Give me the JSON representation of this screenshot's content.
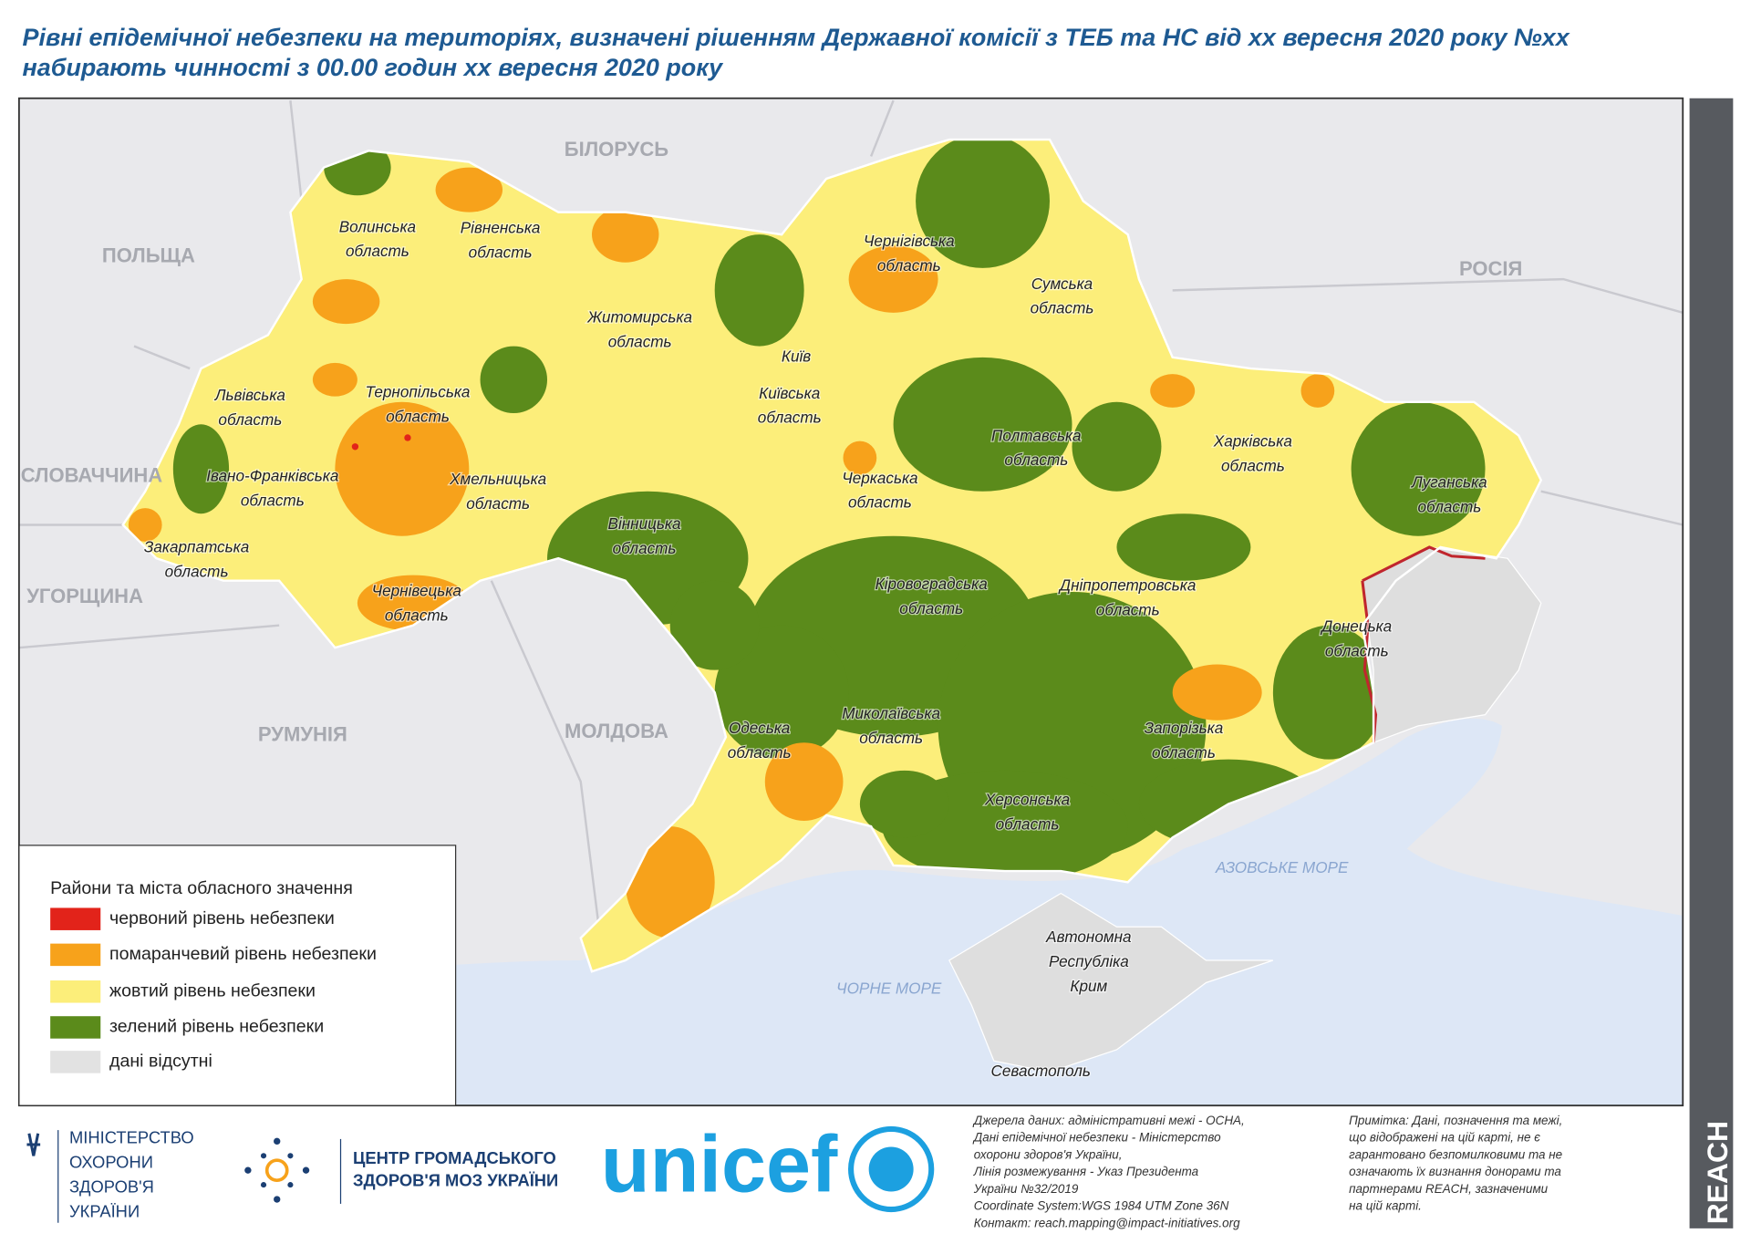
{
  "header": {
    "title_lines": [
      "Рівні епідемічної небезпеки на територіях, визначені рішенням Державної комісії з ТЕБ та НС від хх вересня 2020 року №хх",
      "набирають чинності з 00.00 годин хх вересня 2020 року"
    ]
  },
  "map": {
    "countries": [
      "БІЛОРУСЬ",
      "ПОЛЬЩА",
      "РОСІЯ",
      "СЛОВАЧЧИНА",
      "УГОРЩИНА",
      "РУМУНІЯ",
      "МОЛДОВА"
    ],
    "seas": [
      "АЗОВСЬКЕ МОРЕ",
      "ЧОРНЕ МОРЕ"
    ],
    "regions": [
      [
        "Волинська",
        "область"
      ],
      [
        "Рівненська",
        "область"
      ],
      [
        "Житомирська",
        "область"
      ],
      [
        "Чернігівська",
        "область"
      ],
      [
        "Сумська",
        "область"
      ],
      [
        "Київ"
      ],
      [
        "Київська",
        "область"
      ],
      [
        "Львівська",
        "область"
      ],
      [
        "Тернопільська",
        "область"
      ],
      [
        "Полтавська",
        "область"
      ],
      [
        "Харківська",
        "область"
      ],
      [
        "Луганська",
        "область"
      ],
      [
        "Івано-Франківська",
        "область"
      ],
      [
        "Хмельницька",
        "область"
      ],
      [
        "Черкаська",
        "область"
      ],
      [
        "Вінницька",
        "область"
      ],
      [
        "Закарпатська",
        "область"
      ],
      [
        "Кіровоградська",
        "область"
      ],
      [
        "Дніпропетровська",
        "область"
      ],
      [
        "Чернівецька",
        "область"
      ],
      [
        "Донецька",
        "область"
      ],
      [
        "Одеська",
        "область"
      ],
      [
        "Миколаївська",
        "область"
      ],
      [
        "Запорізька",
        "область"
      ],
      [
        "Херсонська",
        "область"
      ],
      [
        "Автономна",
        "Республіка",
        "Крим"
      ],
      [
        "Севастополь"
      ]
    ]
  },
  "legend": {
    "title": "Райони та міста обласного значення",
    "items": [
      {
        "label": "червоний рівень небезпеки",
        "color": "#e2231a"
      },
      {
        "label": "помаранчевий рівень небезпеки",
        "color": "#f7a21b"
      },
      {
        "label": "жовтий рівень небезпеки",
        "color": "#fcee7a"
      },
      {
        "label": "зелений рівень небезпеки",
        "color": "#5b8b1b"
      },
      {
        "label": "дані відсутні",
        "color": "#e2e2e2"
      }
    ]
  },
  "footer": {
    "ministry": [
      "МІНІСТЕРСТВО",
      "ОХОРОНИ",
      "ЗДОРОВ'Я",
      "УКРАЇНИ"
    ],
    "centre": [
      "ЦЕНТР ГРОМАДСЬКОГО",
      "ЗДОРОВ'Я МОЗ УКРАЇНИ"
    ],
    "unicef": "unicef",
    "sources": [
      "Джерела даних: адміністративні межі - OCHA,",
      "Дані епідемічної небезпеки - Міністерство",
      "охорони здоров'я України,",
      "Лінія розмежування - Указ Президента",
      "України №32/2019",
      "Coordinate System:WGS 1984 UTM Zone 36N",
      "Контакт: reach.mapping@impact-initiatives.org"
    ],
    "note": [
      "Примітка: Дані, позначення та межі,",
      "що відображені на цій карті, не є",
      "гарантовано безпомилковими та не",
      "означають їх визнання донорами та",
      "партнерами REACH, зазначеними",
      "на цій карті."
    ],
    "reach": "REACH"
  }
}
